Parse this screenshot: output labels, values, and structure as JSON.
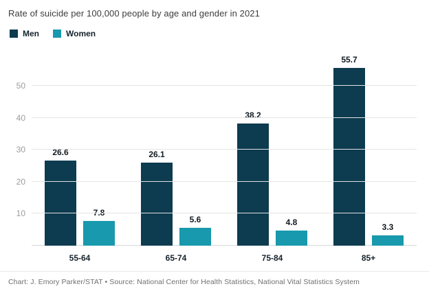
{
  "chart_data": {
    "type": "bar",
    "title": "Rate of suicide per 100,000 people by age and gender in 2021",
    "categories": [
      "55-64",
      "65-74",
      "75-84",
      "85+"
    ],
    "series": [
      {
        "name": "Men",
        "color": "#0d3b4f",
        "values": [
          26.6,
          26.1,
          38.2,
          55.7
        ]
      },
      {
        "name": "Women",
        "color": "#1899ad",
        "values": [
          7.8,
          5.6,
          4.8,
          3.3
        ]
      }
    ],
    "yticks": [
      10,
      20,
      30,
      40,
      50
    ],
    "ylim": [
      0,
      58
    ],
    "grid": true,
    "legend_position": "top-left",
    "xlabel": "",
    "ylabel": ""
  },
  "footer": {
    "text": "Chart: J. Emory Parker/STAT • Source: National Center for Health Statistics, National Vital Statistics System"
  }
}
